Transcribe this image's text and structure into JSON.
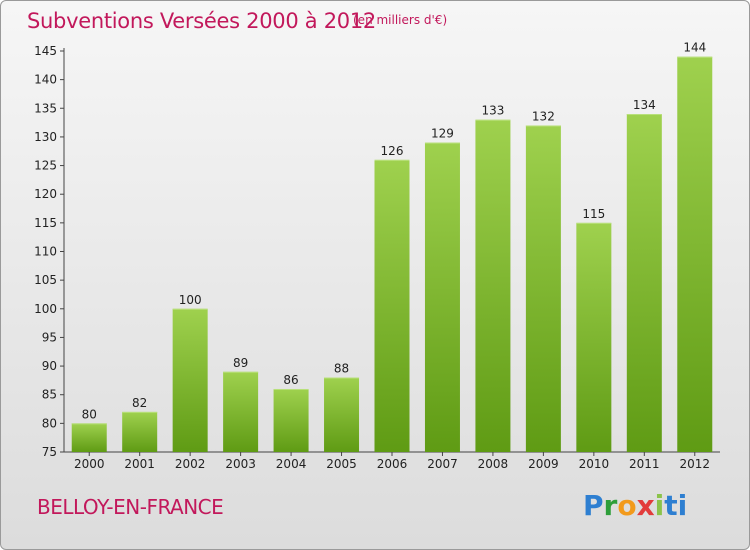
{
  "title": "Subventions Versées 2000 à 2012",
  "subtitle": "(en milliers d'€)",
  "commune": "BELLOY-EN-FRANCE",
  "logo": {
    "letters": [
      "P",
      "r",
      "o",
      "x",
      "i",
      "ti"
    ]
  },
  "colors": {
    "title": "#c2185b",
    "bar_top": "#9fd14e",
    "bar_bottom": "#5f9b14"
  },
  "chart_data": {
    "type": "bar",
    "title": "Subventions Versées 2000 à 2012",
    "subtitle": "(en milliers d'€)",
    "xlabel": "",
    "ylabel": "",
    "ylim": [
      75,
      145
    ],
    "yticks": [
      75,
      80,
      85,
      90,
      95,
      100,
      105,
      110,
      115,
      120,
      125,
      130,
      135,
      140,
      145
    ],
    "grid": false,
    "categories": [
      "2000",
      "2001",
      "2002",
      "2003",
      "2004",
      "2005",
      "2006",
      "2007",
      "2008",
      "2009",
      "2010",
      "2011",
      "2012"
    ],
    "values": [
      80,
      82,
      100,
      89,
      86,
      88,
      126,
      129,
      133,
      132,
      115,
      134,
      144
    ]
  }
}
